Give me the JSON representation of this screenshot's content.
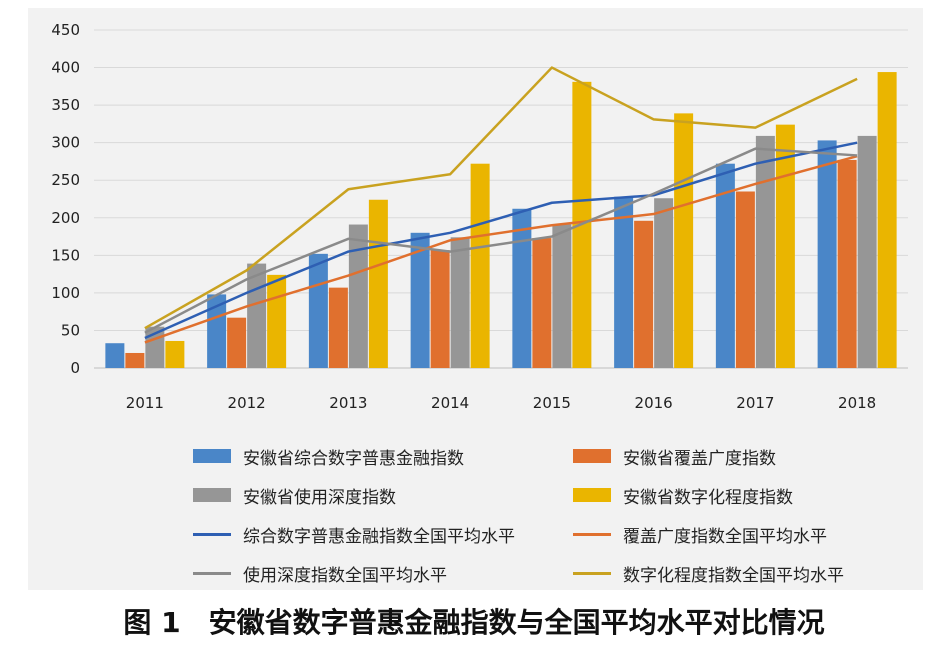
{
  "chart_data": {
    "type": "bar",
    "categories": [
      "2011",
      "2012",
      "2013",
      "2014",
      "2015",
      "2016",
      "2017",
      "2018"
    ],
    "ylim": [
      0,
      450
    ],
    "yticks": [
      "0",
      "50",
      "100",
      "150",
      "200",
      "250",
      "300",
      "350",
      "400",
      "450"
    ],
    "grid": true,
    "legend_position": "bottom",
    "bar_series": [
      {
        "name": "安徽省综合数字普惠金融指数",
        "color": "#4a86c8",
        "values": [
          33,
          98,
          152,
          180,
          212,
          228,
          272,
          303
        ]
      },
      {
        "name": "安徽省覆盖广度指数",
        "color": "#e0702e",
        "values": [
          20,
          67,
          107,
          157,
          173,
          196,
          235,
          277
        ]
      },
      {
        "name": "安徽省使用深度指数",
        "color": "#969696",
        "values": [
          55,
          139,
          191,
          174,
          191,
          226,
          309,
          309
        ]
      },
      {
        "name": "安徽省数字化程度指数",
        "color": "#eab500",
        "values": [
          36,
          124,
          224,
          272,
          381,
          339,
          324,
          394
        ]
      }
    ],
    "line_series": [
      {
        "name": "综合数字普惠金融指数全国平均水平",
        "color": "#2e5fb3",
        "values": [
          40,
          100,
          155,
          180,
          220,
          230,
          272,
          300
        ]
      },
      {
        "name": "覆盖广度指数全国平均水平",
        "color": "#e0702e",
        "values": [
          34,
          82,
          123,
          170,
          190,
          205,
          245,
          282
        ]
      },
      {
        "name": "使用深度指数全国平均水平",
        "color": "#8a8a8a",
        "values": [
          47,
          118,
          172,
          155,
          175,
          232,
          292,
          283
        ]
      },
      {
        "name": "数字化程度指数全国平均水平",
        "color": "#c9a220",
        "values": [
          53,
          130,
          238,
          258,
          400,
          331,
          320,
          385
        ]
      }
    ]
  },
  "legend": [
    {
      "label": "安徽省综合数字普惠金融指数",
      "kind": "bar",
      "color": "#4a86c8"
    },
    {
      "label": "安徽省覆盖广度指数",
      "kind": "bar",
      "color": "#e0702e"
    },
    {
      "label": "安徽省使用深度指数",
      "kind": "bar",
      "color": "#969696"
    },
    {
      "label": "安徽省数字化程度指数",
      "kind": "bar",
      "color": "#eab500"
    },
    {
      "label": "综合数字普惠金融指数全国平均水平",
      "kind": "line",
      "color": "#2e5fb3"
    },
    {
      "label": "覆盖广度指数全国平均水平",
      "kind": "line",
      "color": "#e0702e"
    },
    {
      "label": "使用深度指数全国平均水平",
      "kind": "line",
      "color": "#8a8a8a"
    },
    {
      "label": "数字化程度指数全国平均水平",
      "kind": "line",
      "color": "#c9a220"
    }
  ],
  "caption": "图 1　安徽省数字普惠金融指数与全国平均水平对比情况"
}
